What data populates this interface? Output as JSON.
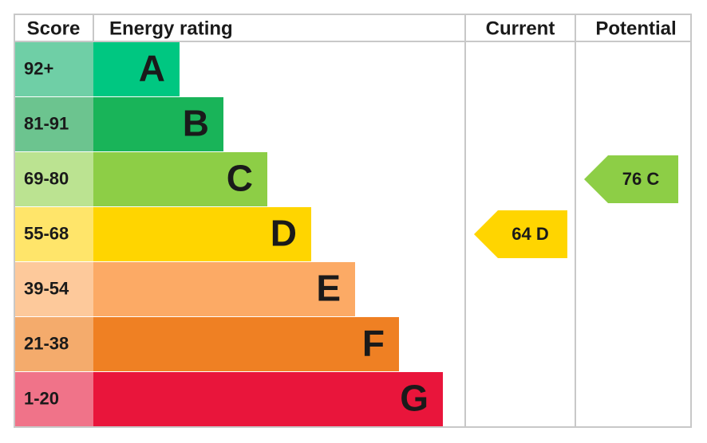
{
  "header": {
    "score": "Score",
    "energy_rating": "Energy rating",
    "current": "Current",
    "potential": "Potential"
  },
  "bands": [
    {
      "score": "92+",
      "letter": "A",
      "color": "#00c781",
      "score_color": "#6fcfa6"
    },
    {
      "score": "81-91",
      "letter": "B",
      "color": "#19b459",
      "score_color": "#6cc48f"
    },
    {
      "score": "69-80",
      "letter": "C",
      "color": "#8dce46",
      "score_color": "#bbe391"
    },
    {
      "score": "55-68",
      "letter": "D",
      "color": "#ffd500",
      "score_color": "#ffe56a"
    },
    {
      "score": "39-54",
      "letter": "E",
      "color": "#fcaa65",
      "score_color": "#fdc99b"
    },
    {
      "score": "21-38",
      "letter": "F",
      "color": "#ef8023",
      "score_color": "#f4ab6c"
    },
    {
      "score": "1-20",
      "letter": "G",
      "color": "#e9153b",
      "score_color": "#f07389"
    }
  ],
  "current": {
    "score": 64,
    "rating": "D"
  },
  "potential": {
    "score": 76,
    "rating": "C"
  }
}
